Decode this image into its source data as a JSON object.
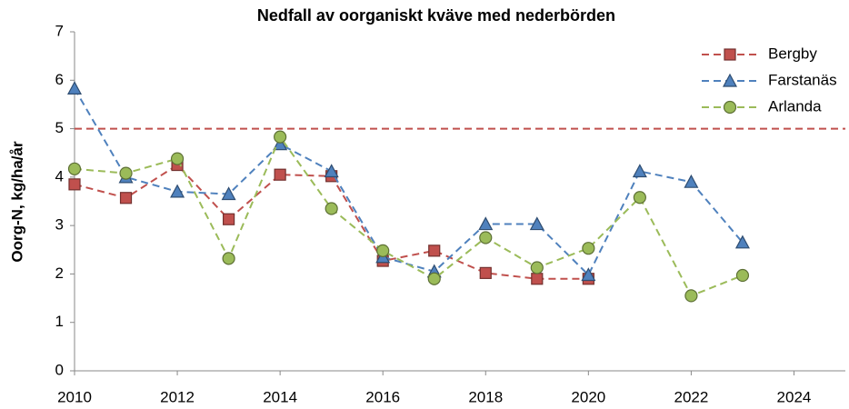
{
  "chart_data": {
    "type": "line",
    "title": "Nedfall av oorganiskt kväve med nederbörden",
    "y_label": "Oorg-N, kg/ha/år",
    "x": [
      2010,
      2011,
      2012,
      2013,
      2014,
      2015,
      2016,
      2017,
      2018,
      2019,
      2020,
      2021,
      2022,
      2023
    ],
    "series": [
      {
        "name": "Bergby",
        "color": "#c0504d",
        "marker": "square",
        "values": [
          3.85,
          3.57,
          4.25,
          3.13,
          4.05,
          4.02,
          2.27,
          2.48,
          2.02,
          1.9,
          1.9,
          null,
          null,
          null
        ]
      },
      {
        "name": "Farstanäs",
        "color": "#4f81bd",
        "marker": "triangle",
        "values": [
          5.83,
          4.0,
          3.7,
          3.65,
          4.68,
          4.12,
          2.35,
          2.05,
          3.03,
          3.03,
          1.98,
          4.12,
          3.9,
          2.65
        ]
      },
      {
        "name": "Arlanda",
        "color": "#9bbb59",
        "marker": "circle",
        "values": [
          4.17,
          4.08,
          4.38,
          2.32,
          4.83,
          3.35,
          2.48,
          1.9,
          2.75,
          2.13,
          2.53,
          3.58,
          1.55,
          1.97
        ]
      }
    ],
    "reference_line": {
      "value": 5,
      "color": "#c0504d"
    },
    "xlim": [
      2010,
      2025
    ],
    "xticks": [
      2010,
      2012,
      2014,
      2016,
      2018,
      2020,
      2022,
      2024
    ],
    "ylim": [
      0,
      7
    ],
    "yticks": [
      0,
      1,
      2,
      3,
      4,
      5,
      6,
      7
    ],
    "grid": false,
    "legend": "top-right"
  }
}
